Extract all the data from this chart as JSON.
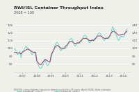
{
  "title": "RWI/ISL Container Throughput Index",
  "subtitle": "2008 = 100",
  "footnote": "RWI/ISL computations based on data provided by 75 ports. April 2014: flash estimate.",
  "ylim": [
    70,
    135
  ],
  "xlim_start": 2006.42,
  "xlim_end": 2014.5,
  "xtick_years": [
    2007,
    2008,
    2009,
    2010,
    2011,
    2012,
    2013,
    2014
  ],
  "yticks_show": [
    80,
    90,
    100,
    110,
    120,
    130
  ],
  "original_color": "#4dd9c8",
  "seasonal_color": "#993366",
  "legend_original": "original value",
  "legend_seasonal": "seasonally adjusted",
  "background_color": "#f0f0eb",
  "grid_color": "#ffffff",
  "text_color": "#555555",
  "title_color": "#222222",
  "start_year": 2006.0,
  "original_values": [
    85,
    87,
    90,
    93,
    96,
    99,
    100,
    95,
    92,
    94,
    96,
    88,
    95,
    97,
    100,
    103,
    101,
    100,
    98,
    95,
    92,
    94,
    96,
    95,
    85,
    80,
    76,
    74,
    75,
    78,
    82,
    86,
    80,
    78,
    80,
    82,
    88,
    93,
    98,
    103,
    107,
    108,
    105,
    100,
    97,
    99,
    101,
    100,
    100,
    102,
    106,
    110,
    112,
    113,
    110,
    105,
    103,
    105,
    108,
    107,
    107,
    109,
    113,
    116,
    117,
    116,
    113,
    109,
    107,
    109,
    111,
    110,
    110,
    112,
    116,
    119,
    120,
    119,
    116,
    112,
    110,
    112,
    114,
    113,
    113,
    116,
    122,
    128,
    125,
    120,
    117,
    113,
    110,
    113,
    116,
    115,
    115,
    117,
    123,
    125
  ],
  "seasonal_values": [
    92,
    92,
    93,
    93,
    94,
    95,
    95,
    95,
    94,
    94,
    94,
    93,
    95,
    96,
    97,
    98,
    99,
    99,
    98,
    97,
    96,
    95,
    95,
    95,
    84,
    82,
    80,
    79,
    80,
    82,
    84,
    86,
    85,
    84,
    83,
    83,
    92,
    95,
    98,
    101,
    103,
    104,
    103,
    102,
    100,
    100,
    100,
    100,
    103,
    104,
    106,
    108,
    109,
    109,
    108,
    107,
    106,
    107,
    107,
    107,
    109,
    110,
    112,
    113,
    113,
    113,
    112,
    111,
    110,
    110,
    111,
    110,
    112,
    113,
    115,
    116,
    116,
    116,
    115,
    114,
    113,
    113,
    113,
    113,
    115,
    117,
    120,
    122,
    122,
    121,
    120,
    118,
    117,
    117,
    118,
    118,
    118,
    119,
    121,
    122
  ]
}
